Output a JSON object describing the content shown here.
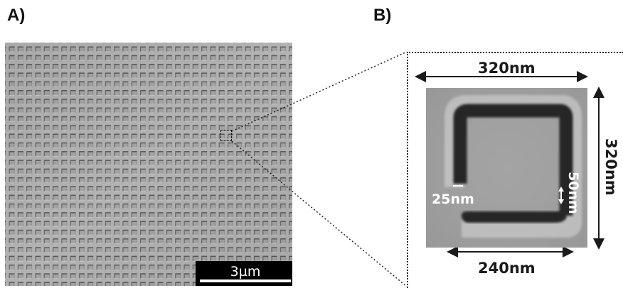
{
  "panels": {
    "a_label": "A)",
    "b_label": "B)"
  },
  "scale_bar": {
    "label": "3µm"
  },
  "dimensions": {
    "outer_width": "320nm",
    "outer_height": "320nm",
    "bottom_length": "240nm",
    "gap": "25nm",
    "arm_width": "50nm"
  },
  "colors": {
    "sem_background": "#a9a9a9",
    "feature_dark": "#262626",
    "inner_gray": "#9c9c9c"
  }
}
